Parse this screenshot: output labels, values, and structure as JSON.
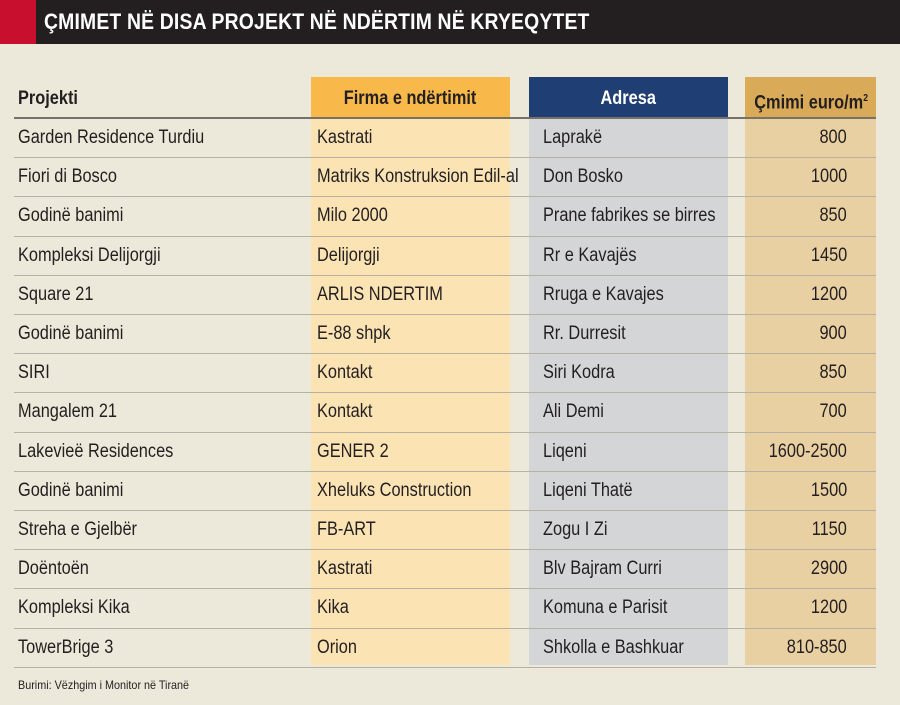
{
  "title": "ÇMIMET NË DISA PROJEKT NË NDËRTIM NË KRYEQYTET",
  "colors": {
    "title_bar": "#231f20",
    "title_accent": "#c8102e",
    "firma_header": "#f8b94a",
    "firma_column": "#fbe3b4",
    "adresa_header": "#1f3f74",
    "adresa_column": "#d4d5d6",
    "cmimi_header": "#d9aa58",
    "cmimi_column": "#e9d0a2",
    "background": "#ece8da"
  },
  "table": {
    "headers": {
      "projekti": "Projekti",
      "firma": "Firma e ndërtimit",
      "adresa": "Adresa",
      "cmimi": "Çmimi euro/m",
      "cmimi_sup": "2"
    },
    "rows": [
      {
        "projekti": "Garden Residence Turdiu",
        "firma": "Kastrati",
        "adresa": "Laprakë",
        "cmimi": "800"
      },
      {
        "projekti": "Fiori di Bosco",
        "firma": "Matriks Konstruksion Edil-al",
        "adresa": "Don Bosko",
        "cmimi": "1000"
      },
      {
        "projekti": "Godinë banimi",
        "firma": "Milo 2000",
        "adresa": "Prane fabrikes se birres",
        "cmimi": "850"
      },
      {
        "projekti": "Kompleksi Delijorgji",
        "firma": "Delijorgji",
        "adresa": "Rr e Kavajës",
        "cmimi": "1450"
      },
      {
        "projekti": "Square 21",
        "firma": "ARLIS NDERTIM",
        "adresa": "Rruga e Kavajes",
        "cmimi": "1200"
      },
      {
        "projekti": "Godinë banimi",
        "firma": "E-88 shpk",
        "adresa": "Rr. Durresit",
        "cmimi": "900"
      },
      {
        "projekti": "SIRI",
        "firma": "Kontakt",
        "adresa": "Siri Kodra",
        "cmimi": "850"
      },
      {
        "projekti": "Mangalem 21",
        "firma": "Kontakt",
        "adresa": "Ali Demi",
        "cmimi": "700"
      },
      {
        "projekti": "Lakevieë Residences",
        "firma": "GENER 2",
        "adresa": "Liqeni",
        "cmimi": "1600-2500"
      },
      {
        "projekti": "Godinë banimi",
        "firma": "Xheluks Construction",
        "adresa": "Liqeni Thatë",
        "cmimi": "1500"
      },
      {
        "projekti": "Streha e Gjelbër",
        "firma": "FB-ART",
        "adresa": "Zogu I Zi",
        "cmimi": "1150"
      },
      {
        "projekti": "Doëntoën",
        "firma": "Kastrati",
        "adresa": "Blv Bajram Curri",
        "cmimi": "2900"
      },
      {
        "projekti": "Kompleksi Kika",
        "firma": "Kika",
        "adresa": "Komuna e Parisit",
        "cmimi": "1200"
      },
      {
        "projekti": "TowerBrige 3",
        "firma": "Orion",
        "adresa": "Shkolla e Bashkuar",
        "cmimi": "810-850"
      }
    ]
  },
  "source": "Burimi: Vëzhgim i Monitor në Tiranë"
}
